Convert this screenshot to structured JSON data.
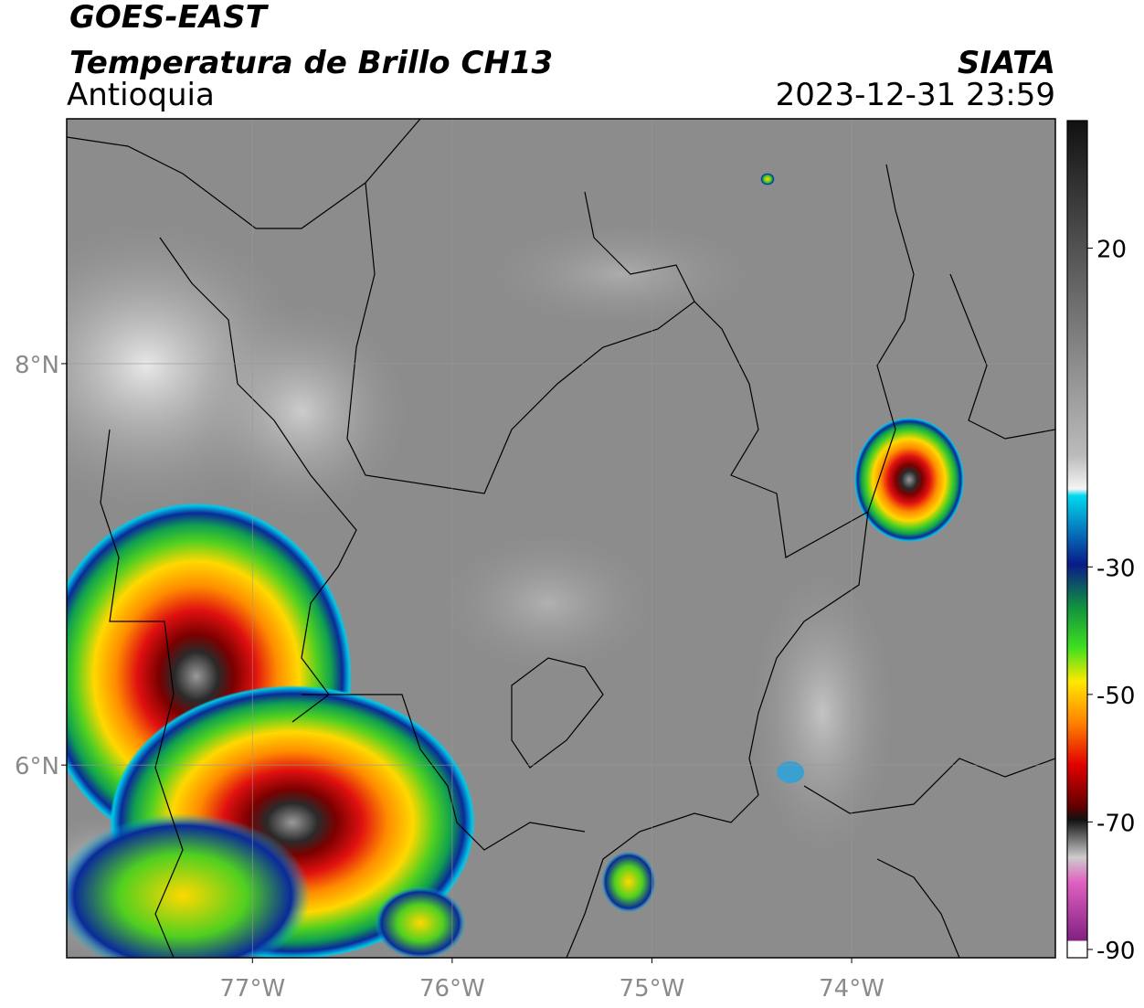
{
  "header": {
    "title": "GOES-EAST",
    "subtitle": "Temperatura de Brillo CH13",
    "region": "Antioquia",
    "source": "SIATA",
    "timestamp": "2023-12-31 23:59"
  },
  "map": {
    "xlim": [
      -77.93,
      -72.98
    ],
    "ylim": [
      5.04,
      9.22
    ],
    "xticks": [
      {
        "value": -77,
        "label": "77°W"
      },
      {
        "value": -76,
        "label": "76°W"
      },
      {
        "value": -75,
        "label": "75°W"
      },
      {
        "value": -74,
        "label": "74°W"
      }
    ],
    "yticks": [
      {
        "value": 8,
        "label": "8°N"
      },
      {
        "value": 6,
        "label": "6°N"
      }
    ],
    "grid": true
  },
  "colorbar": {
    "clim": [
      -91.3,
      40
    ],
    "ticks": [
      20,
      -30,
      -50,
      -70,
      -90
    ]
  }
}
